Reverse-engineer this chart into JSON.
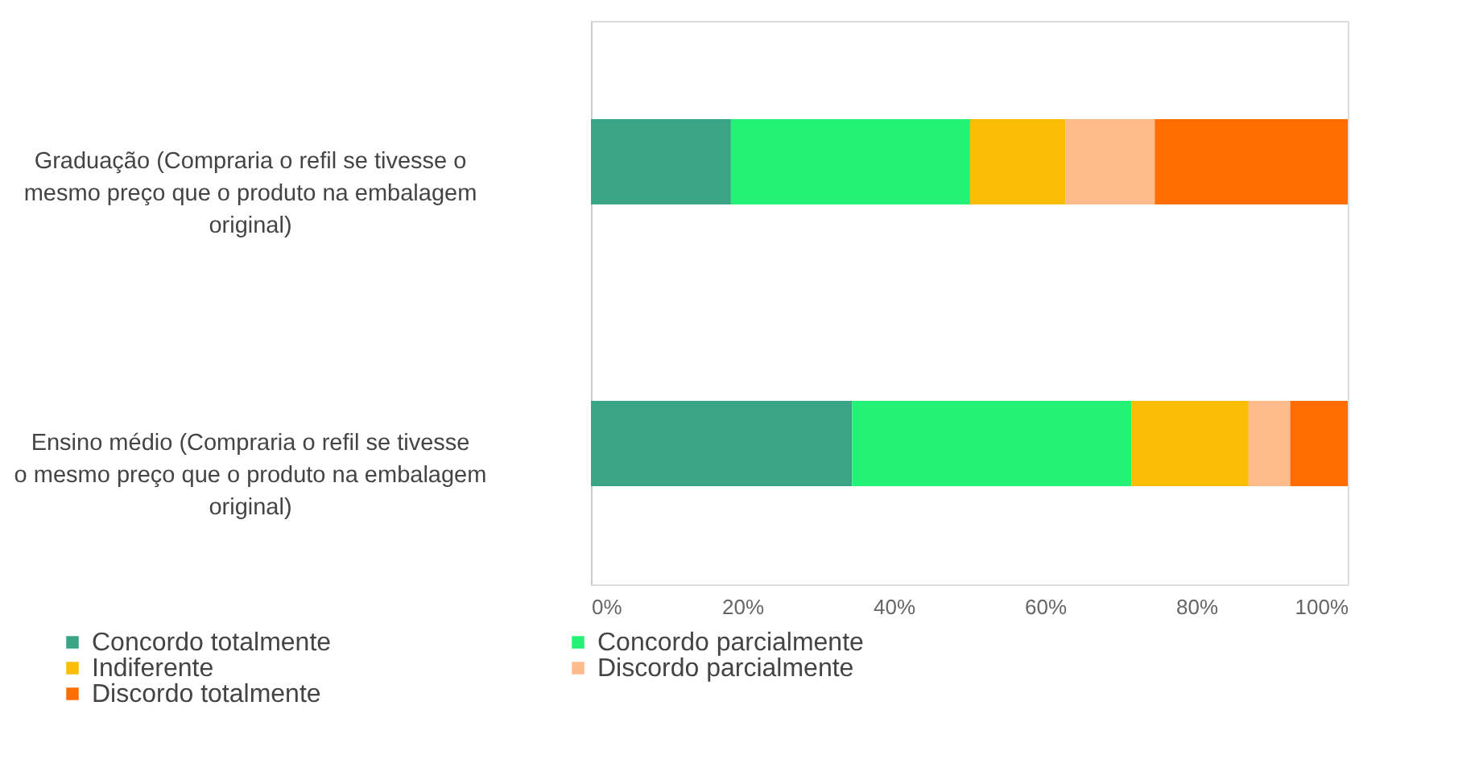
{
  "chart_data": {
    "type": "bar",
    "orientation": "horizontal",
    "stacked": true,
    "categories": [
      "Graduação (Compraria o refil se tivesse o mesmo preço que o produto na embalagem original)",
      "Ensino médio (Compraria o refil se tivesse o mesmo preço que o produto na embalagem original)"
    ],
    "series": [
      {
        "name": "Concordo totalmente",
        "color": "#3aa584",
        "values": [
          18.5,
          34.5
        ]
      },
      {
        "name": "Concordo parcialmente",
        "color": "#24f277",
        "values": [
          31.6,
          36.9
        ]
      },
      {
        "name": "Indiferente",
        "color": "#fbbc04",
        "values": [
          12.6,
          15.5
        ]
      },
      {
        "name": "Discordo parcialmente",
        "color": "#fdbb8c",
        "values": [
          11.8,
          5.5
        ]
      },
      {
        "name": "Discordo totalmente",
        "color": "#ff6d00",
        "values": [
          25.5,
          7.6
        ]
      }
    ],
    "xlim": [
      0,
      100
    ],
    "xticks": [
      {
        "value": 0,
        "label": "0%"
      },
      {
        "value": 20,
        "label": "20%"
      },
      {
        "value": 40,
        "label": "40%"
      },
      {
        "value": 60,
        "label": "60%"
      },
      {
        "value": 80,
        "label": "80%"
      },
      {
        "value": 100,
        "label": "100%"
      }
    ],
    "grid": false,
    "legend": "bottom"
  }
}
